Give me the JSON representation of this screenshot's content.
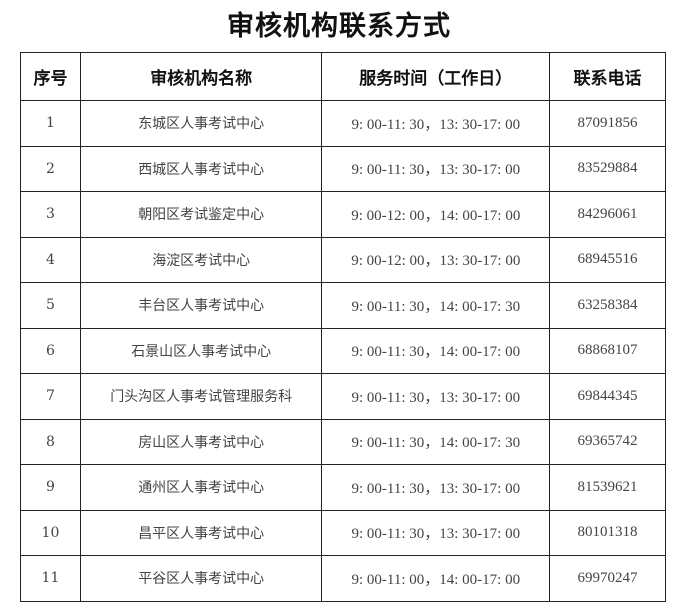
{
  "title": "审核机构联系方式",
  "headers": [
    "序号",
    "审核机构名称",
    "服务时间（工作日）",
    "联系电话"
  ],
  "rows": [
    {
      "no": "1",
      "name": "东城区人事考试中心",
      "time": "9: 00-11: 30，13: 30-17: 00",
      "phone": "87091856"
    },
    {
      "no": "2",
      "name": "西城区人事考试中心",
      "time": "9: 00-11: 30，13: 30-17: 00",
      "phone": "83529884"
    },
    {
      "no": "3",
      "name": "朝阳区考试鉴定中心",
      "time": "9: 00-12: 00，14: 00-17: 00",
      "phone": "84296061"
    },
    {
      "no": "4",
      "name": "海淀区考试中心",
      "time": "9: 00-12: 00，13: 30-17: 00",
      "phone": "68945516"
    },
    {
      "no": "5",
      "name": "丰台区人事考试中心",
      "time": "9: 00-11: 30，14: 00-17: 30",
      "phone": "63258384"
    },
    {
      "no": "6",
      "name": "石景山区人事考试中心",
      "time": "9: 00-11: 30，14: 00-17: 00",
      "phone": "68868107"
    },
    {
      "no": "7",
      "name": "门头沟区人事考试管理服务科",
      "time": "9: 00-11: 30，13: 30-17: 00",
      "phone": "69844345"
    },
    {
      "no": "8",
      "name": "房山区人事考试中心",
      "time": "9: 00-11: 30，14: 00-17: 30",
      "phone": "69365742"
    },
    {
      "no": "9",
      "name": "通州区人事考试中心",
      "time": "9: 00-11: 30，13: 30-17: 00",
      "phone": "81539621"
    },
    {
      "no": "10",
      "name": "昌平区人事考试中心",
      "time": "9: 00-11: 30，13: 30-17: 00",
      "phone": "80101318"
    },
    {
      "no": "11",
      "name": "平谷区人事考试中心",
      "time": "9: 00-11: 00，14: 00-17: 00",
      "phone": "69970247"
    }
  ]
}
